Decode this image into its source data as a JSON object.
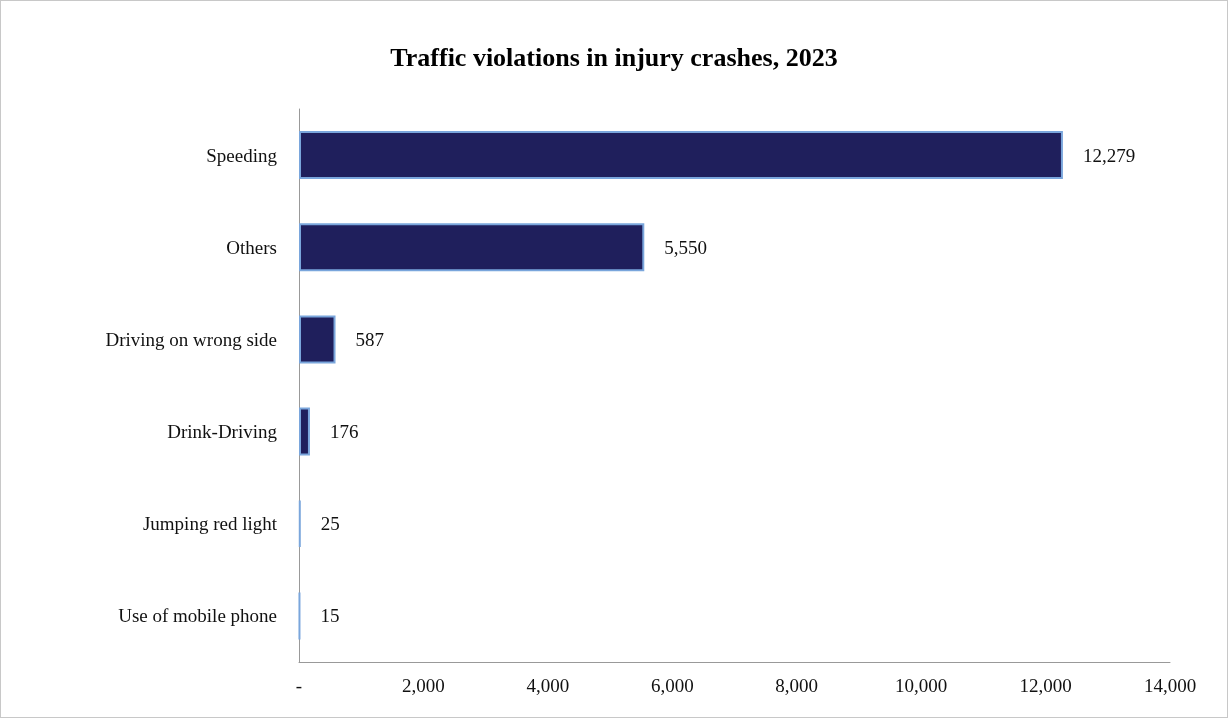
{
  "chart_data": {
    "type": "bar",
    "orientation": "horizontal",
    "title": "Traffic violations in injury crashes, 2023",
    "categories": [
      "Speeding",
      "Others",
      "Driving on wrong side",
      "Drink-Driving",
      "Jumping red light",
      "Use of mobile phone"
    ],
    "values": [
      12279,
      5550,
      587,
      176,
      25,
      15
    ],
    "value_labels": [
      "12,279",
      "5,550",
      "587",
      "176",
      "25",
      "15"
    ],
    "colors": [
      "#1f1f5c",
      "#1f1f5c",
      "#1f1f5c",
      "#1f1f5c",
      "#7aa6dc",
      "#7aa6dc"
    ],
    "xlim": [
      0,
      14000
    ],
    "xticks": [
      {
        "value": 0,
        "label": "-"
      },
      {
        "value": 2000,
        "label": "2,000"
      },
      {
        "value": 4000,
        "label": "4,000"
      },
      {
        "value": 6000,
        "label": "6,000"
      },
      {
        "value": 8000,
        "label": "8,000"
      },
      {
        "value": 10000,
        "label": "10,000"
      },
      {
        "value": 12000,
        "label": "12,000"
      },
      {
        "value": 14000,
        "label": "14,000"
      }
    ],
    "grid": false
  }
}
